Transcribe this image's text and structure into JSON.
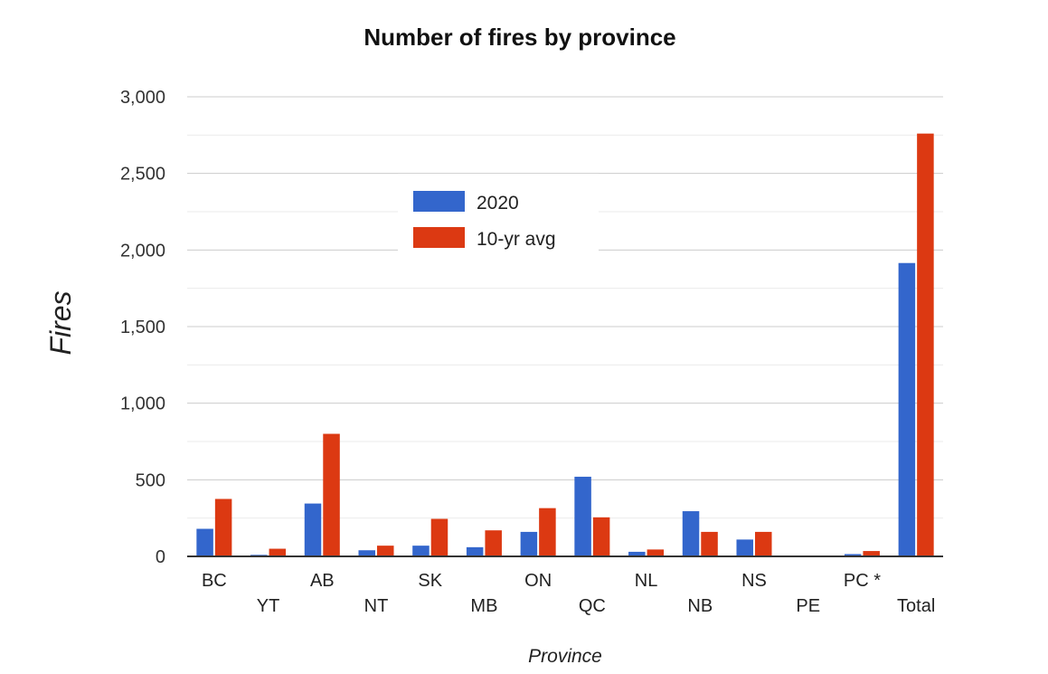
{
  "chart_data": {
    "type": "bar",
    "title": "Number of fires by province",
    "xlabel": "Province",
    "ylabel": "Fires",
    "categories": [
      "BC",
      "YT",
      "AB",
      "NT",
      "SK",
      "MB",
      "ON",
      "QC",
      "NL",
      "NB",
      "NS",
      "PE",
      "PC *",
      "Total"
    ],
    "series": [
      {
        "name": "2020",
        "color": "#3366cc",
        "values": [
          180,
          10,
          345,
          40,
          70,
          60,
          160,
          520,
          30,
          295,
          110,
          5,
          15,
          1915
        ]
      },
      {
        "name": "10-yr avg",
        "color": "#dc3912",
        "values": [
          375,
          50,
          800,
          70,
          245,
          170,
          315,
          255,
          45,
          160,
          160,
          2,
          35,
          2760
        ]
      }
    ],
    "ylim": [
      0,
      3000
    ],
    "yticks": [
      0,
      500,
      1000,
      1500,
      2000,
      2500,
      3000
    ],
    "ytick_labels": [
      "0",
      "500",
      "1,000",
      "1,500",
      "2,000",
      "2,500",
      "3,000"
    ],
    "grid": true,
    "legend_position": "top-left inside plot"
  }
}
